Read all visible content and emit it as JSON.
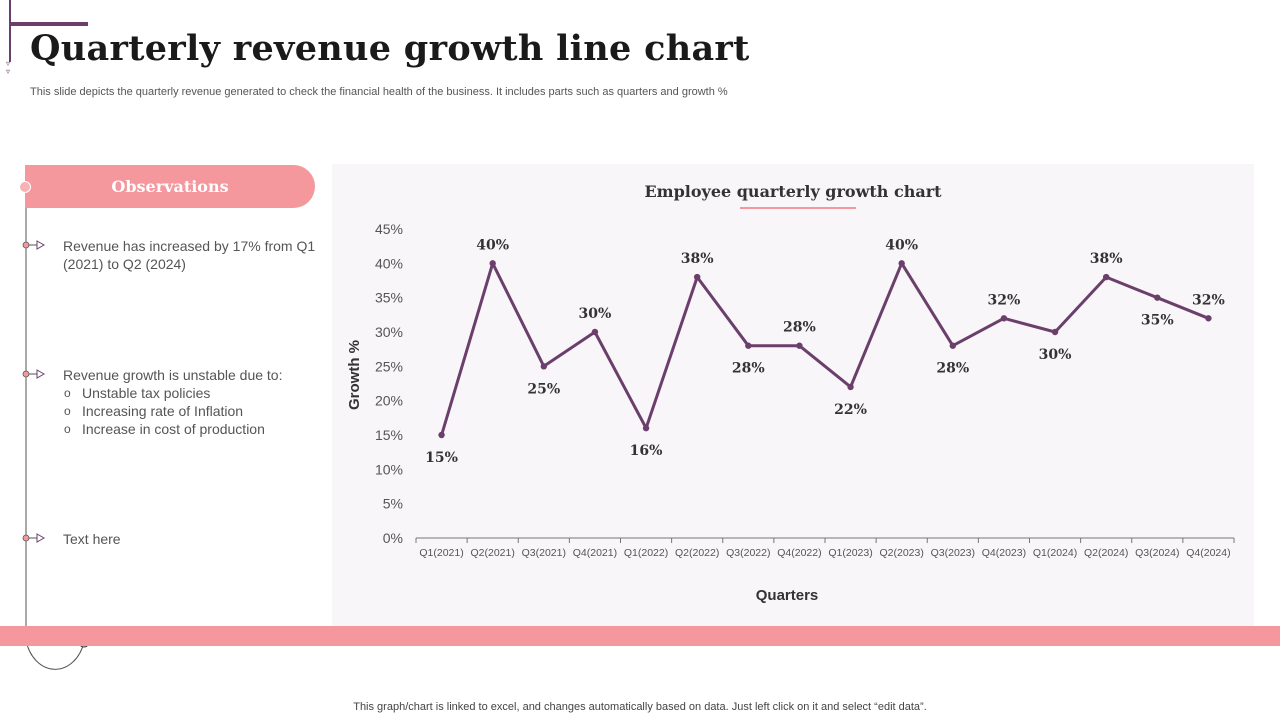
{
  "slide": {
    "title": "Quarterly revenue growth line chart",
    "subtitle": "This slide depicts the quarterly revenue generated to check the financial health of the business. It includes parts such as quarters and growth %",
    "footer": "This graph/chart is linked to excel,  and changes automatically based on data. Just left click on it and select “edit data”."
  },
  "observations": {
    "header": "Observations",
    "items": [
      {
        "text": "Revenue has increased by 17% from Q1 (2021) to Q2 (2024)"
      },
      {
        "text": "Revenue growth is unstable due to:",
        "bullets": [
          "Unstable tax policies",
          "Increasing rate of Inflation",
          "Increase in cost of production"
        ]
      },
      {
        "text": "Text here"
      }
    ]
  },
  "colors": {
    "accent": "#f4989e",
    "line": "#6b3f6b",
    "panel": "#f8f6f8"
  },
  "chart_data": {
    "type": "line",
    "title": "Employee quarterly growth chart",
    "xlabel": "Quarters",
    "ylabel": "Growth %",
    "ylim": [
      0,
      45
    ],
    "yticks": [
      "0%",
      "5%",
      "10%",
      "15%",
      "20%",
      "25%",
      "30%",
      "35%",
      "40%",
      "45%"
    ],
    "categories": [
      "Q1(2021)",
      "Q2(2021)",
      "Q3(2021)",
      "Q4(2021)",
      "Q1(2022)",
      "Q2(2022)",
      "Q3(2022)",
      "Q4(2022)",
      "Q1(2023)",
      "Q2(2023)",
      "Q3(2023)",
      "Q4(2023)",
      "Q1(2024)",
      "Q2(2024)",
      "Q3(2024)",
      "Q4(2024)"
    ],
    "values": [
      15,
      40,
      25,
      30,
      16,
      38,
      28,
      28,
      22,
      40,
      28,
      32,
      30,
      38,
      35,
      32
    ],
    "labels": [
      "15%",
      "40%",
      "25%",
      "30%",
      "16%",
      "38%",
      "28%",
      "28%",
      "22%",
      "40%",
      "28%",
      "32%",
      "30%",
      "38%",
      "35%",
      "32%"
    ],
    "grid": false,
    "legend": "none"
  }
}
